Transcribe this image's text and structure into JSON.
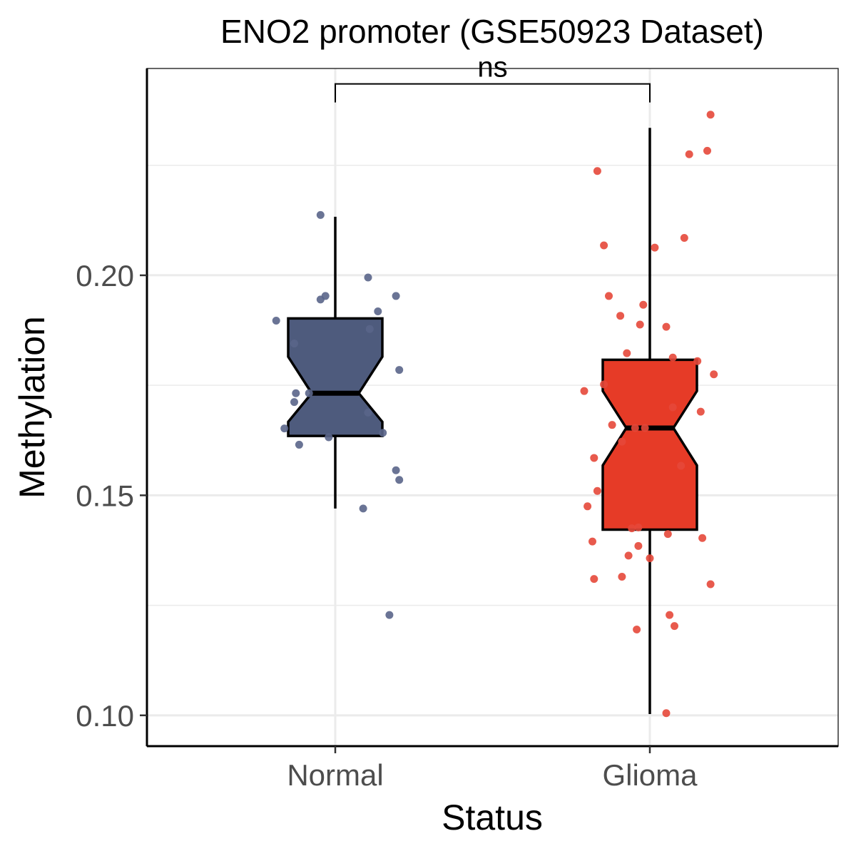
{
  "chart_data": {
    "type": "box",
    "title": "ENO2 promoter (GSE50923 Dataset)",
    "xlabel": "Status",
    "ylabel": "Methylation",
    "categories": [
      "Normal",
      "Glioma"
    ],
    "ylim": [
      0.093,
      0.247
    ],
    "yticks": [
      0.1,
      0.15,
      0.2
    ],
    "ytick_labels": [
      "0.10",
      "0.15",
      "0.20"
    ],
    "grid": true,
    "legend": "none",
    "boxes": [
      {
        "category": "Normal",
        "color": "#4E5B7D",
        "point_color": "#5A6589",
        "whisker_low": 0.147,
        "q1": 0.1635,
        "median": 0.1732,
        "q3": 0.1902,
        "whisker_high": 0.2133,
        "notch_low": 0.1667,
        "notch_high": 0.1815
      },
      {
        "category": "Glioma",
        "color": "#E63B27",
        "point_color": "#E6483A",
        "whisker_low": 0.1003,
        "q1": 0.1422,
        "median": 0.1653,
        "q3": 0.1808,
        "whisker_high": 0.2335,
        "notch_low": 0.1568,
        "notch_high": 0.1737
      }
    ],
    "points": [
      {
        "group": "Normal",
        "jitter": -0.36,
        "y": 0.1897
      },
      {
        "group": "Normal",
        "jitter": -0.31,
        "y": 0.1652
      },
      {
        "group": "Normal",
        "jitter": -0.25,
        "y": 0.1845
      },
      {
        "group": "Normal",
        "jitter": -0.25,
        "y": 0.1712
      },
      {
        "group": "Normal",
        "jitter": -0.24,
        "y": 0.1732
      },
      {
        "group": "Normal",
        "jitter": -0.22,
        "y": 0.1615
      },
      {
        "group": "Normal",
        "jitter": -0.16,
        "y": 0.1732
      },
      {
        "group": "Normal",
        "jitter": -0.09,
        "y": 0.1945
      },
      {
        "group": "Normal",
        "jitter": -0.09,
        "y": 0.2137
      },
      {
        "group": "Normal",
        "jitter": -0.06,
        "y": 0.1953
      },
      {
        "group": "Normal",
        "jitter": -0.04,
        "y": 0.1632
      },
      {
        "group": "Normal",
        "jitter": 0.17,
        "y": 0.147
      },
      {
        "group": "Normal",
        "jitter": 0.2,
        "y": 0.1995
      },
      {
        "group": "Normal",
        "jitter": 0.2,
        "y": 0.1688
      },
      {
        "group": "Normal",
        "jitter": 0.21,
        "y": 0.1878
      },
      {
        "group": "Normal",
        "jitter": 0.26,
        "y": 0.1918
      },
      {
        "group": "Normal",
        "jitter": 0.29,
        "y": 0.1642
      },
      {
        "group": "Normal",
        "jitter": 0.33,
        "y": 0.1228
      },
      {
        "group": "Normal",
        "jitter": 0.37,
        "y": 0.1953
      },
      {
        "group": "Normal",
        "jitter": 0.37,
        "y": 0.1557
      },
      {
        "group": "Normal",
        "jitter": 0.39,
        "y": 0.1785
      },
      {
        "group": "Normal",
        "jitter": 0.39,
        "y": 0.1535
      },
      {
        "group": "Glioma",
        "jitter": -0.4,
        "y": 0.1737
      },
      {
        "group": "Glioma",
        "jitter": -0.38,
        "y": 0.1475
      },
      {
        "group": "Glioma",
        "jitter": -0.35,
        "y": 0.1395
      },
      {
        "group": "Glioma",
        "jitter": -0.34,
        "y": 0.1585
      },
      {
        "group": "Glioma",
        "jitter": -0.34,
        "y": 0.131
      },
      {
        "group": "Glioma",
        "jitter": -0.32,
        "y": 0.2237
      },
      {
        "group": "Glioma",
        "jitter": -0.32,
        "y": 0.151
      },
      {
        "group": "Glioma",
        "jitter": -0.28,
        "y": 0.1752
      },
      {
        "group": "Glioma",
        "jitter": -0.28,
        "y": 0.2068
      },
      {
        "group": "Glioma",
        "jitter": -0.25,
        "y": 0.1953
      },
      {
        "group": "Glioma",
        "jitter": -0.23,
        "y": 0.166
      },
      {
        "group": "Glioma",
        "jitter": -0.18,
        "y": 0.1908
      },
      {
        "group": "Glioma",
        "jitter": -0.17,
        "y": 0.1622
      },
      {
        "group": "Glioma",
        "jitter": -0.17,
        "y": 0.1315
      },
      {
        "group": "Glioma",
        "jitter": -0.14,
        "y": 0.1823
      },
      {
        "group": "Glioma",
        "jitter": -0.13,
        "y": 0.1363
      },
      {
        "group": "Glioma",
        "jitter": -0.11,
        "y": 0.1425
      },
      {
        "group": "Glioma",
        "jitter": -0.09,
        "y": 0.1653
      },
      {
        "group": "Glioma",
        "jitter": -0.08,
        "y": 0.1195
      },
      {
        "group": "Glioma",
        "jitter": -0.07,
        "y": 0.1427
      },
      {
        "group": "Glioma",
        "jitter": -0.07,
        "y": 0.1385
      },
      {
        "group": "Glioma",
        "jitter": -0.06,
        "y": 0.1888
      },
      {
        "group": "Glioma",
        "jitter": -0.04,
        "y": 0.1933
      },
      {
        "group": "Glioma",
        "jitter": -0.03,
        "y": 0.1653
      },
      {
        "group": "Glioma",
        "jitter": 0.0,
        "y": 0.1357
      },
      {
        "group": "Glioma",
        "jitter": 0.03,
        "y": 0.2063
      },
      {
        "group": "Glioma",
        "jitter": 0.1,
        "y": 0.1005
      },
      {
        "group": "Glioma",
        "jitter": 0.1,
        "y": 0.1883
      },
      {
        "group": "Glioma",
        "jitter": 0.11,
        "y": 0.1412
      },
      {
        "group": "Glioma",
        "jitter": 0.12,
        "y": 0.1228
      },
      {
        "group": "Glioma",
        "jitter": 0.14,
        "y": 0.1813
      },
      {
        "group": "Glioma",
        "jitter": 0.14,
        "y": 0.17
      },
      {
        "group": "Glioma",
        "jitter": 0.15,
        "y": 0.1203
      },
      {
        "group": "Glioma",
        "jitter": 0.19,
        "y": 0.1567
      },
      {
        "group": "Glioma",
        "jitter": 0.21,
        "y": 0.2085
      },
      {
        "group": "Glioma",
        "jitter": 0.24,
        "y": 0.2275
      },
      {
        "group": "Glioma",
        "jitter": 0.29,
        "y": 0.1805
      },
      {
        "group": "Glioma",
        "jitter": 0.31,
        "y": 0.169
      },
      {
        "group": "Glioma",
        "jitter": 0.32,
        "y": 0.1403
      },
      {
        "group": "Glioma",
        "jitter": 0.35,
        "y": 0.2283
      },
      {
        "group": "Glioma",
        "jitter": 0.37,
        "y": 0.1298
      },
      {
        "group": "Glioma",
        "jitter": 0.37,
        "y": 0.2365
      },
      {
        "group": "Glioma",
        "jitter": 0.39,
        "y": 0.1775
      }
    ],
    "significance": {
      "label": "ns",
      "from": "Normal",
      "to": "Glioma",
      "y": 0.2435
    }
  }
}
